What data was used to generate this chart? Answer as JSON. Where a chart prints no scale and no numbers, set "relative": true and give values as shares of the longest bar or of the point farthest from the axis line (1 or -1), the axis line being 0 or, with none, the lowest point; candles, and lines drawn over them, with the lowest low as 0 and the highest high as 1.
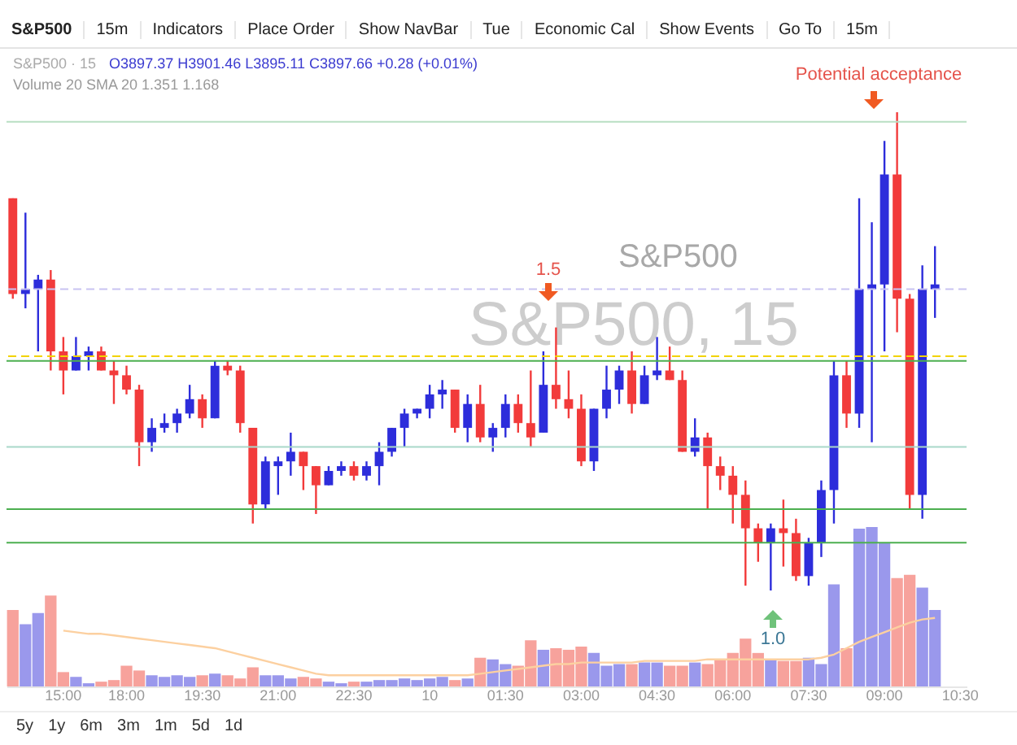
{
  "chart_data": [
    {
      "type": "candlestick",
      "title": "S&P500 · 15",
      "subtitle": "O3897.37 H3901.46 L3895.11 C3897.66 +0.28 (+0.01%)",
      "relative": true,
      "tick_labels": false,
      "categories": [
        null,
        null,
        null,
        null,
        null,
        null,
        null,
        null,
        null,
        null,
        null,
        null,
        null,
        null,
        null,
        null,
        null,
        null,
        null,
        null,
        null,
        null,
        null,
        null,
        null,
        null,
        null,
        null,
        null,
        null,
        null,
        null,
        null,
        null,
        null,
        null,
        null,
        null,
        null,
        null,
        null,
        null,
        null,
        null,
        null,
        null,
        null,
        null,
        null,
        null,
        null,
        null,
        null,
        null,
        null,
        null,
        null,
        null,
        null,
        null,
        null,
        null,
        null,
        null,
        null,
        null,
        null,
        null,
        null,
        null,
        null,
        null,
        null,
        null,
        null,
        null
      ],
      "ohlc": [
        [
          0.82,
          0.82,
          0.61,
          0.62
        ],
        [
          0.62,
          0.79,
          0.59,
          0.63
        ],
        [
          0.63,
          0.66,
          0.5,
          0.65
        ],
        [
          0.65,
          0.67,
          0.46,
          0.5
        ],
        [
          0.5,
          0.53,
          0.41,
          0.46
        ],
        [
          0.46,
          0.53,
          0.46,
          0.49
        ],
        [
          0.49,
          0.51,
          0.46,
          0.5
        ],
        [
          0.5,
          0.51,
          0.46,
          0.46
        ],
        [
          0.46,
          0.48,
          0.39,
          0.45
        ],
        [
          0.45,
          0.47,
          0.41,
          0.42
        ],
        [
          0.42,
          0.43,
          0.26,
          0.31
        ],
        [
          0.31,
          0.36,
          0.29,
          0.34
        ],
        [
          0.34,
          0.37,
          0.33,
          0.35
        ],
        [
          0.35,
          0.38,
          0.33,
          0.37
        ],
        [
          0.37,
          0.43,
          0.36,
          0.4
        ],
        [
          0.4,
          0.41,
          0.34,
          0.36
        ],
        [
          0.36,
          0.48,
          0.36,
          0.47
        ],
        [
          0.47,
          0.48,
          0.45,
          0.46
        ],
        [
          0.46,
          0.47,
          0.33,
          0.35
        ],
        [
          0.34,
          0.34,
          0.14,
          0.18
        ],
        [
          0.18,
          0.28,
          0.17,
          0.27
        ],
        [
          0.26,
          0.28,
          0.2,
          0.27
        ],
        [
          0.27,
          0.33,
          0.24,
          0.29
        ],
        [
          0.29,
          0.29,
          0.21,
          0.26
        ],
        [
          0.26,
          0.26,
          0.16,
          0.22
        ],
        [
          0.22,
          0.26,
          0.22,
          0.25
        ],
        [
          0.25,
          0.27,
          0.24,
          0.26
        ],
        [
          0.26,
          0.27,
          0.23,
          0.24
        ],
        [
          0.24,
          0.27,
          0.23,
          0.26
        ],
        [
          0.26,
          0.31,
          0.22,
          0.29
        ],
        [
          0.29,
          0.34,
          0.28,
          0.34
        ],
        [
          0.34,
          0.38,
          0.3,
          0.37
        ],
        [
          0.37,
          0.38,
          0.36,
          0.38
        ],
        [
          0.38,
          0.43,
          0.36,
          0.41
        ],
        [
          0.41,
          0.44,
          0.38,
          0.42
        ],
        [
          0.42,
          0.42,
          0.33,
          0.34
        ],
        [
          0.34,
          0.41,
          0.31,
          0.39
        ],
        [
          0.39,
          0.43,
          0.31,
          0.32
        ],
        [
          0.32,
          0.35,
          0.29,
          0.34
        ],
        [
          0.34,
          0.41,
          0.32,
          0.39
        ],
        [
          0.39,
          0.41,
          0.33,
          0.35
        ],
        [
          0.35,
          0.46,
          0.3,
          0.32
        ],
        [
          0.33,
          0.5,
          0.33,
          0.43
        ],
        [
          0.43,
          0.55,
          0.38,
          0.4
        ],
        [
          0.4,
          0.46,
          0.36,
          0.38
        ],
        [
          0.38,
          0.41,
          0.26,
          0.27
        ],
        [
          0.27,
          0.38,
          0.25,
          0.38
        ],
        [
          0.38,
          0.47,
          0.36,
          0.42
        ],
        [
          0.42,
          0.47,
          0.39,
          0.46
        ],
        [
          0.46,
          0.5,
          0.37,
          0.39
        ],
        [
          0.39,
          0.47,
          0.39,
          0.45
        ],
        [
          0.45,
          0.53,
          0.44,
          0.46
        ],
        [
          0.46,
          0.51,
          0.44,
          0.44
        ],
        [
          0.44,
          0.46,
          0.29,
          0.29
        ],
        [
          0.29,
          0.36,
          0.28,
          0.32
        ],
        [
          0.32,
          0.33,
          0.17,
          0.26
        ],
        [
          0.26,
          0.28,
          0.21,
          0.24
        ],
        [
          0.24,
          0.26,
          0.14,
          0.2
        ],
        [
          0.2,
          0.23,
          0.01,
          0.13
        ],
        [
          0.13,
          0.14,
          0.06,
          0.1
        ],
        [
          0.1,
          0.14,
          0,
          0.13
        ],
        [
          0.13,
          0.19,
          0.05,
          0.12
        ],
        [
          0.12,
          0.15,
          0.02,
          0.03
        ],
        [
          0.03,
          0.11,
          0.01,
          0.1
        ],
        [
          0.1,
          0.23,
          0.07,
          0.21
        ],
        [
          0.21,
          0.48,
          0.14,
          0.45
        ],
        [
          0.45,
          0.48,
          0.34,
          0.37
        ],
        [
          0.37,
          0.82,
          0.34,
          0.63
        ],
        [
          0.63,
          0.77,
          0.31,
          0.64
        ],
        [
          0.64,
          0.94,
          0.5,
          0.87
        ],
        [
          0.87,
          1.0,
          0.54,
          0.61
        ],
        [
          0.61,
          0.62,
          0.17,
          0.2
        ],
        [
          0.2,
          0.68,
          0.15,
          0.63
        ],
        [
          0.63,
          0.72,
          0.57,
          0.64
        ],
        null,
        null
      ],
      "colors": [
        "#f23b3b",
        "#2d2ddb",
        "#2d2ddb",
        "#f23b3b",
        "#f23b3b",
        "#2d2ddb",
        "#2d2ddb",
        "#f23b3b",
        "#f23b3b",
        "#f23b3b",
        "#f23b3b",
        "#2d2ddb",
        "#2d2ddb",
        "#2d2ddb",
        "#2d2ddb",
        "#f23b3b",
        "#2d2ddb",
        "#f23b3b",
        "#f23b3b",
        "#f23b3b",
        "#2d2ddb",
        "#2d2ddb",
        "#2d2ddb",
        "#f23b3b",
        "#f23b3b",
        "#2d2ddb",
        "#2d2ddb",
        "#f23b3b",
        "#2d2ddb",
        "#2d2ddb",
        "#2d2ddb",
        "#2d2ddb",
        "#2d2ddb",
        "#2d2ddb",
        "#2d2ddb",
        "#f23b3b",
        "#2d2ddb",
        "#f23b3b",
        "#2d2ddb",
        "#2d2ddb",
        "#f23b3b",
        "#f23b3b",
        "#2d2ddb",
        "#f23b3b",
        "#f23b3b",
        "#f23b3b",
        "#2d2ddb",
        "#2d2ddb",
        "#2d2ddb",
        "#f23b3b",
        "#2d2ddb",
        "#2d2ddb",
        "#f23b3b",
        "#f23b3b",
        "#2d2ddb",
        "#f23b3b",
        "#f23b3b",
        "#f23b3b",
        "#f23b3b",
        "#f23b3b",
        "#2d2ddb",
        "#f23b3b",
        "#f23b3b",
        "#2d2ddb",
        "#2d2ddb",
        "#2d2ddb",
        "#f23b3b",
        "#2d2ddb",
        "#2d2ddb",
        "#2d2ddb",
        "#f23b3b",
        "#f23b3b",
        "#2d2ddb",
        "#2d2ddb",
        null,
        null
      ],
      "ref_lines": [
        {
          "axis": "y",
          "value": 0.98,
          "color": "#b9dfc3"
        },
        {
          "axis": "y",
          "value": 0.63,
          "color": "#c9c3f2",
          "line_style": "dashed"
        },
        {
          "axis": "y",
          "value": 0.49,
          "color": "#f2d300",
          "line_style": "dashed"
        },
        {
          "axis": "y",
          "value": 0.48,
          "color": "#4caf50"
        },
        {
          "axis": "y",
          "value": 0.3,
          "color": "#a9d8c9"
        },
        {
          "axis": "y",
          "value": 0.17,
          "color": "#4caf50"
        },
        {
          "axis": "y",
          "value": 0.1,
          "color": "#4caf50"
        }
      ],
      "annotations": [
        "S&P500",
        "15m",
        "Indicators",
        "Place Order",
        "Show NavBar",
        "Tue",
        "Economic Cal",
        "Show Events",
        "Go To",
        "15m",
        "Volume 20 SMA 20 1.351 1.168",
        "5y",
        "1y",
        "6m",
        "3m",
        "1m",
        "5d",
        "1d",
        "S&P500, 15",
        "S&P500",
        "1.5",
        "1.0",
        "Potential acceptance"
      ]
    },
    {
      "type": "bar",
      "relative": true,
      "tick_labels": "x",
      "categories": [
        null,
        null,
        null,
        null,
        "15:00",
        null,
        null,
        null,
        null,
        "18:00",
        null,
        null,
        null,
        null,
        null,
        "19:30",
        null,
        null,
        null,
        null,
        null,
        "21:00",
        null,
        null,
        null,
        null,
        null,
        "22:30",
        null,
        null,
        null,
        null,
        null,
        "10",
        null,
        null,
        null,
        null,
        null,
        "01:30",
        null,
        null,
        null,
        null,
        null,
        "03:00",
        null,
        null,
        null,
        null,
        null,
        "04:30",
        null,
        null,
        null,
        null,
        null,
        "06:00",
        null,
        null,
        null,
        null,
        null,
        "07:30",
        null,
        null,
        null,
        null,
        null,
        "09:00",
        null,
        null,
        null,
        null,
        null,
        "10:30"
      ],
      "series": [
        {
          "type": "bar",
          "colors": [
            "#f7a29c",
            "#9a98ec",
            "#9a98ec",
            "#f7a29c",
            "#f7a29c",
            "#9a98ec",
            "#9a98ec",
            "#f7a29c",
            "#f7a29c",
            "#f7a29c",
            "#f7a29c",
            "#9a98ec",
            "#9a98ec",
            "#9a98ec",
            "#9a98ec",
            "#f7a29c",
            "#9a98ec",
            "#f7a29c",
            "#f7a29c",
            "#f7a29c",
            "#9a98ec",
            "#9a98ec",
            "#9a98ec",
            "#f7a29c",
            "#f7a29c",
            "#9a98ec",
            "#9a98ec",
            "#f7a29c",
            "#9a98ec",
            "#9a98ec",
            "#9a98ec",
            "#9a98ec",
            "#9a98ec",
            "#9a98ec",
            "#9a98ec",
            "#f7a29c",
            "#9a98ec",
            "#f7a29c",
            "#9a98ec",
            "#9a98ec",
            "#f7a29c",
            "#f7a29c",
            "#9a98ec",
            "#f7a29c",
            "#f7a29c",
            "#f7a29c",
            "#9a98ec",
            "#9a98ec",
            "#9a98ec",
            "#f7a29c",
            "#9a98ec",
            "#9a98ec",
            "#f7a29c",
            "#f7a29c",
            "#9a98ec",
            "#f7a29c",
            "#f7a29c",
            "#f7a29c",
            "#f7a29c",
            "#f7a29c",
            "#9a98ec",
            "#f7a29c",
            "#f7a29c",
            "#9a98ec",
            "#9a98ec",
            "#9a98ec",
            "#f7a29c",
            "#9a98ec",
            "#9a98ec",
            "#9a98ec",
            "#f7a29c",
            "#f7a29c",
            "#9a98ec",
            "#9a98ec",
            null,
            null
          ],
          "values": [
            0.48,
            0.39,
            0.46,
            0.57,
            0.09,
            0.06,
            0.02,
            0.03,
            0.04,
            0.13,
            0.1,
            0.07,
            0.06,
            0.07,
            0.06,
            0.07,
            0.08,
            0.07,
            0.05,
            0.12,
            0.07,
            0.07,
            0.05,
            0.06,
            0.05,
            0.03,
            0.02,
            0.03,
            0.03,
            0.04,
            0.04,
            0.05,
            0.04,
            0.05,
            0.06,
            0.04,
            0.05,
            0.18,
            0.17,
            0.14,
            0.13,
            0.29,
            0.23,
            0.24,
            0.23,
            0.25,
            0.21,
            0.13,
            0.14,
            0.14,
            0.15,
            0.15,
            0.13,
            0.13,
            0.15,
            0.14,
            0.17,
            0.21,
            0.3,
            0.21,
            0.17,
            0.16,
            0.16,
            0.18,
            0.14,
            0.64,
            0.24,
            0.99,
            1.0,
            0.9,
            0.68,
            0.7,
            0.62,
            0.48,
            null,
            null
          ]
        },
        {
          "type": "line",
          "color": "#fcd0a0",
          "values": [
            null,
            null,
            null,
            null,
            0.35,
            0.34,
            0.33,
            0.33,
            0.32,
            0.31,
            0.3,
            0.29,
            0.28,
            0.27,
            0.26,
            0.25,
            0.24,
            0.22,
            0.2,
            0.18,
            0.16,
            0.14,
            0.12,
            0.1,
            0.08,
            0.07,
            0.07,
            0.07,
            0.07,
            0.07,
            0.07,
            0.07,
            0.07,
            0.07,
            0.07,
            0.07,
            0.07,
            0.08,
            0.09,
            0.1,
            0.11,
            0.12,
            0.13,
            0.14,
            0.14,
            0.15,
            0.15,
            0.15,
            0.15,
            0.15,
            0.16,
            0.16,
            0.16,
            0.16,
            0.16,
            0.17,
            0.17,
            0.17,
            0.17,
            0.17,
            0.17,
            0.17,
            0.17,
            0.17,
            0.18,
            0.2,
            0.24,
            0.28,
            0.31,
            0.34,
            0.37,
            0.4,
            0.42,
            0.43,
            null,
            null
          ]
        }
      ]
    }
  ]
}
